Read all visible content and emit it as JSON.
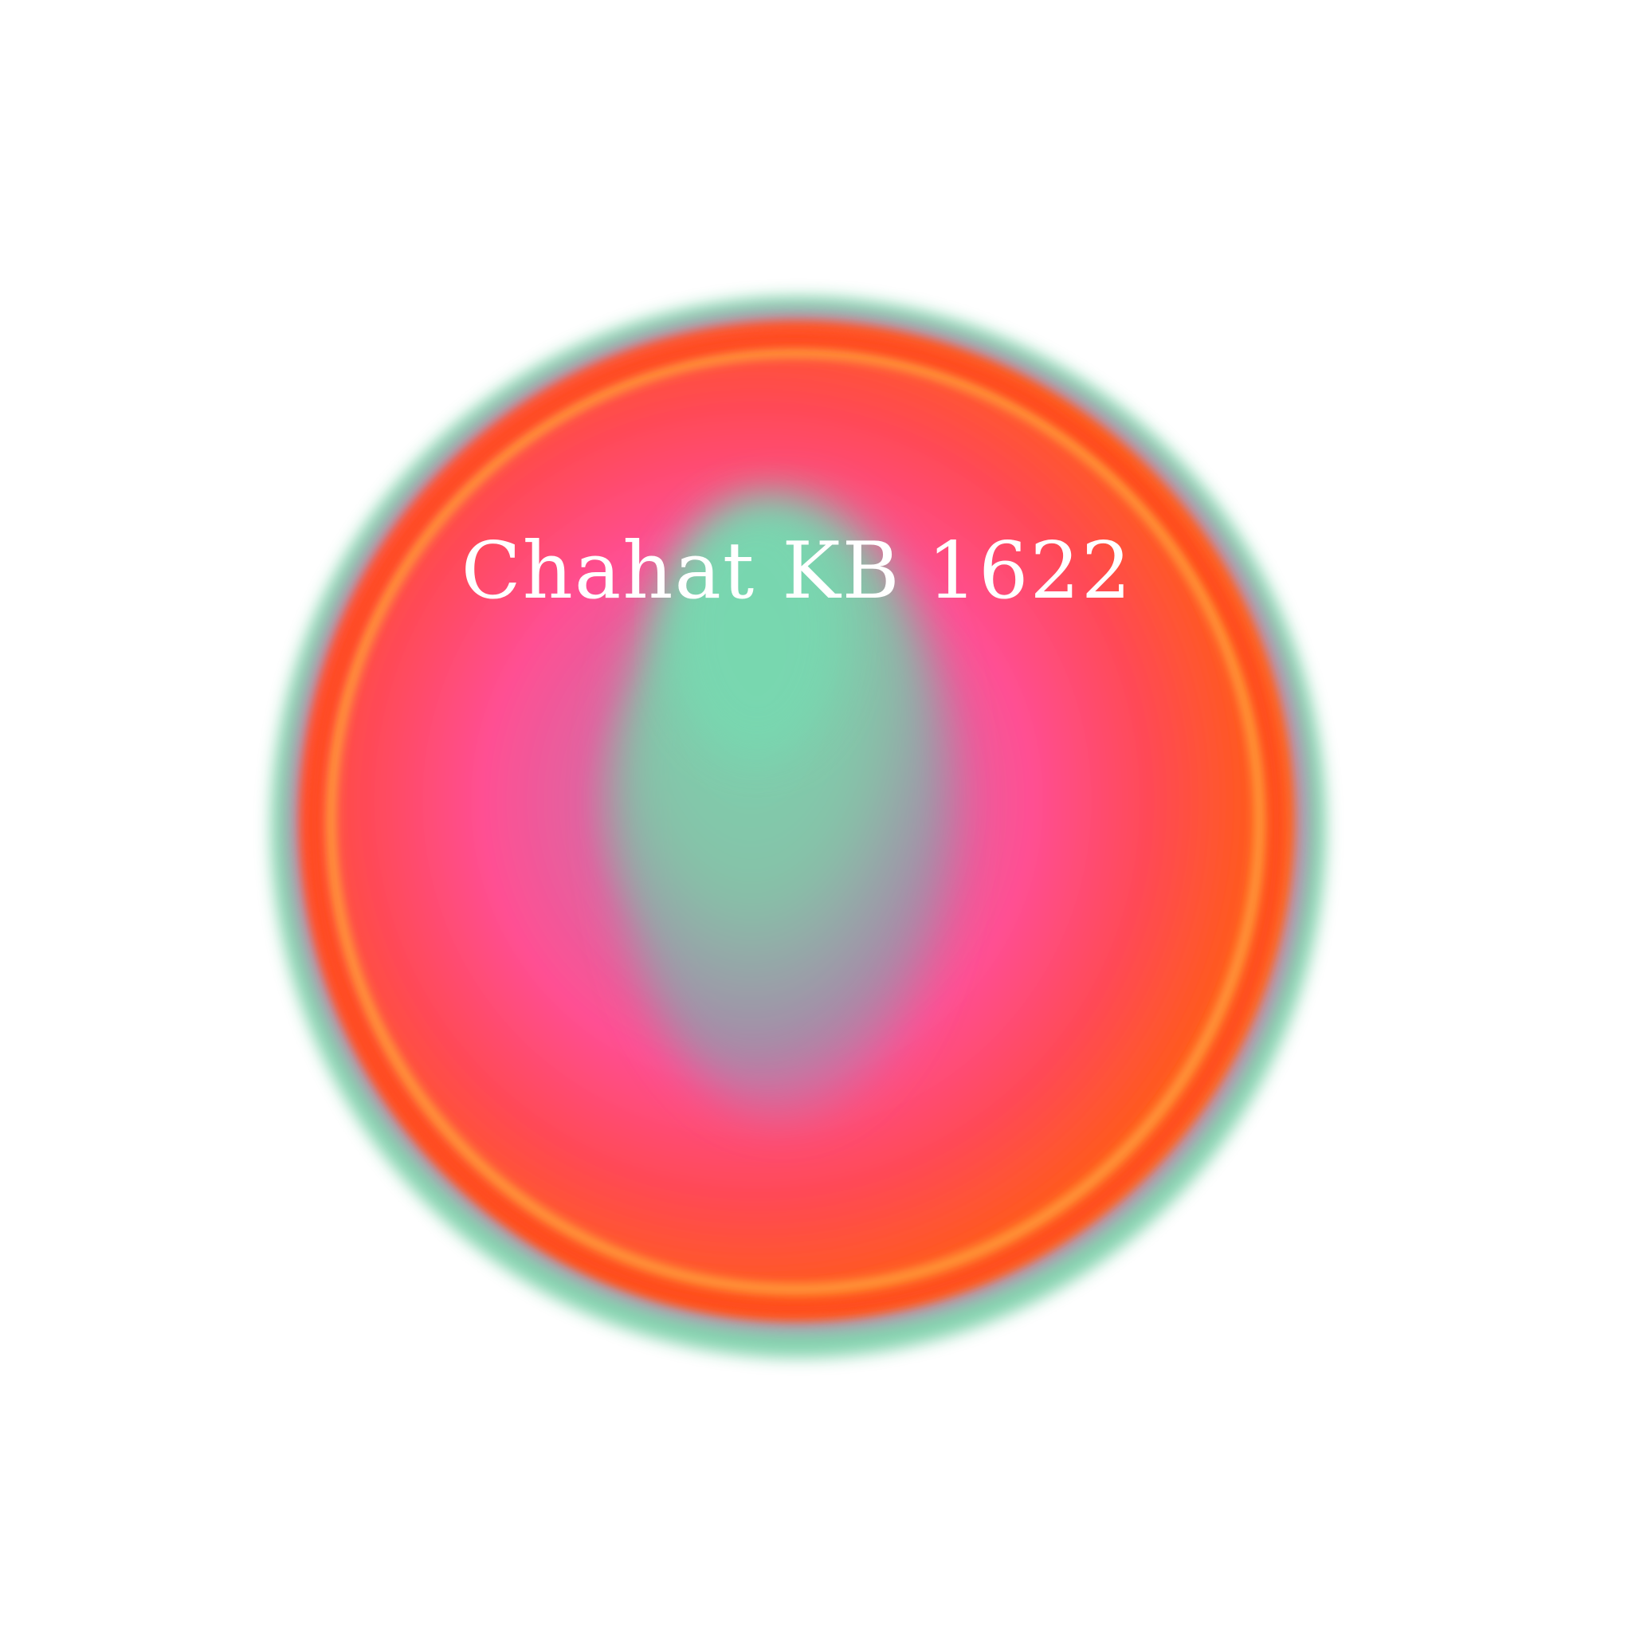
{
  "product": {
    "label": "Chahat KB 1622"
  },
  "colors": {
    "background": "#ffffff",
    "rim_green": "#7fd1ab",
    "outer_orange": "#ff5a1f",
    "ring_orange": "#ff9a3a",
    "pink": "#ff4f93",
    "center_mint": "#78d8b0",
    "center_mauve": "#a88aa8",
    "label_text": "#ffffff"
  }
}
